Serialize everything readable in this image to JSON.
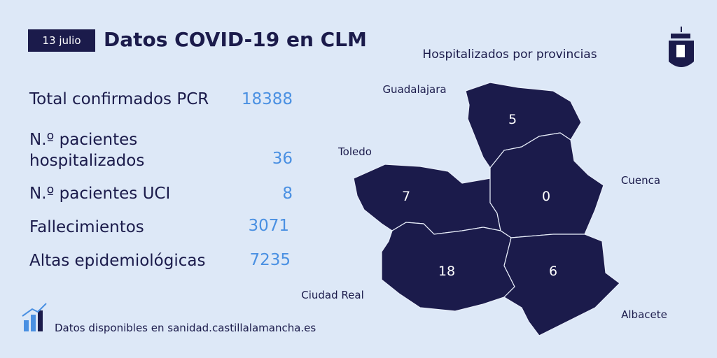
{
  "header": {
    "date": "13 julio",
    "title": "Datos COVID-19 en CLM"
  },
  "stats": [
    {
      "label": "Total confirmados PCR",
      "value": 18388
    },
    {
      "label": "N.º pacientes hospitalizados",
      "value": 36
    },
    {
      "label": "N.º pacientes UCI",
      "value": 8
    },
    {
      "label": "Fallecimientos",
      "value": 3071
    },
    {
      "label": "Altas epidemiológicas",
      "value": 7235
    }
  ],
  "map": {
    "title": "Hospitalizados por provincias",
    "provinces": [
      {
        "name": "Guadalajara",
        "value": 5
      },
      {
        "name": "Toledo",
        "value": 7
      },
      {
        "name": "Cuenca",
        "value": 0
      },
      {
        "name": "Ciudad Real",
        "value": 18
      },
      {
        "name": "Albacete",
        "value": 6
      }
    ]
  },
  "footer": "Datos disponibles en sanidad.castillalamancha.es"
}
